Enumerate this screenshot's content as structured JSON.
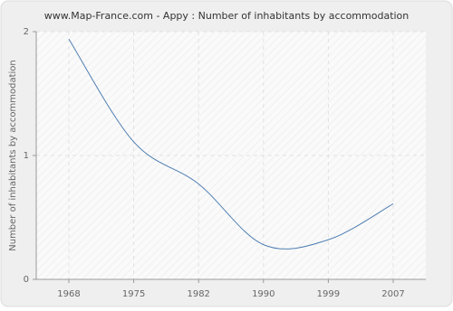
{
  "chart_data": {
    "type": "line",
    "title": "www.Map-France.com - Appy : Number of inhabitants by accommodation",
    "y_label": "Number of inhabitants by accommodation",
    "categories": [
      "1968",
      "1975",
      "1982",
      "1990",
      "1999",
      "2007"
    ],
    "series": [
      {
        "name": "Appy",
        "color": "#4f7fb3",
        "values": [
          1.94,
          1.11,
          0.77,
          0.28,
          0.32,
          0.61
        ]
      }
    ],
    "ylim": [
      0,
      2
    ],
    "yticks": [
      0,
      1,
      2
    ],
    "grid": true
  }
}
